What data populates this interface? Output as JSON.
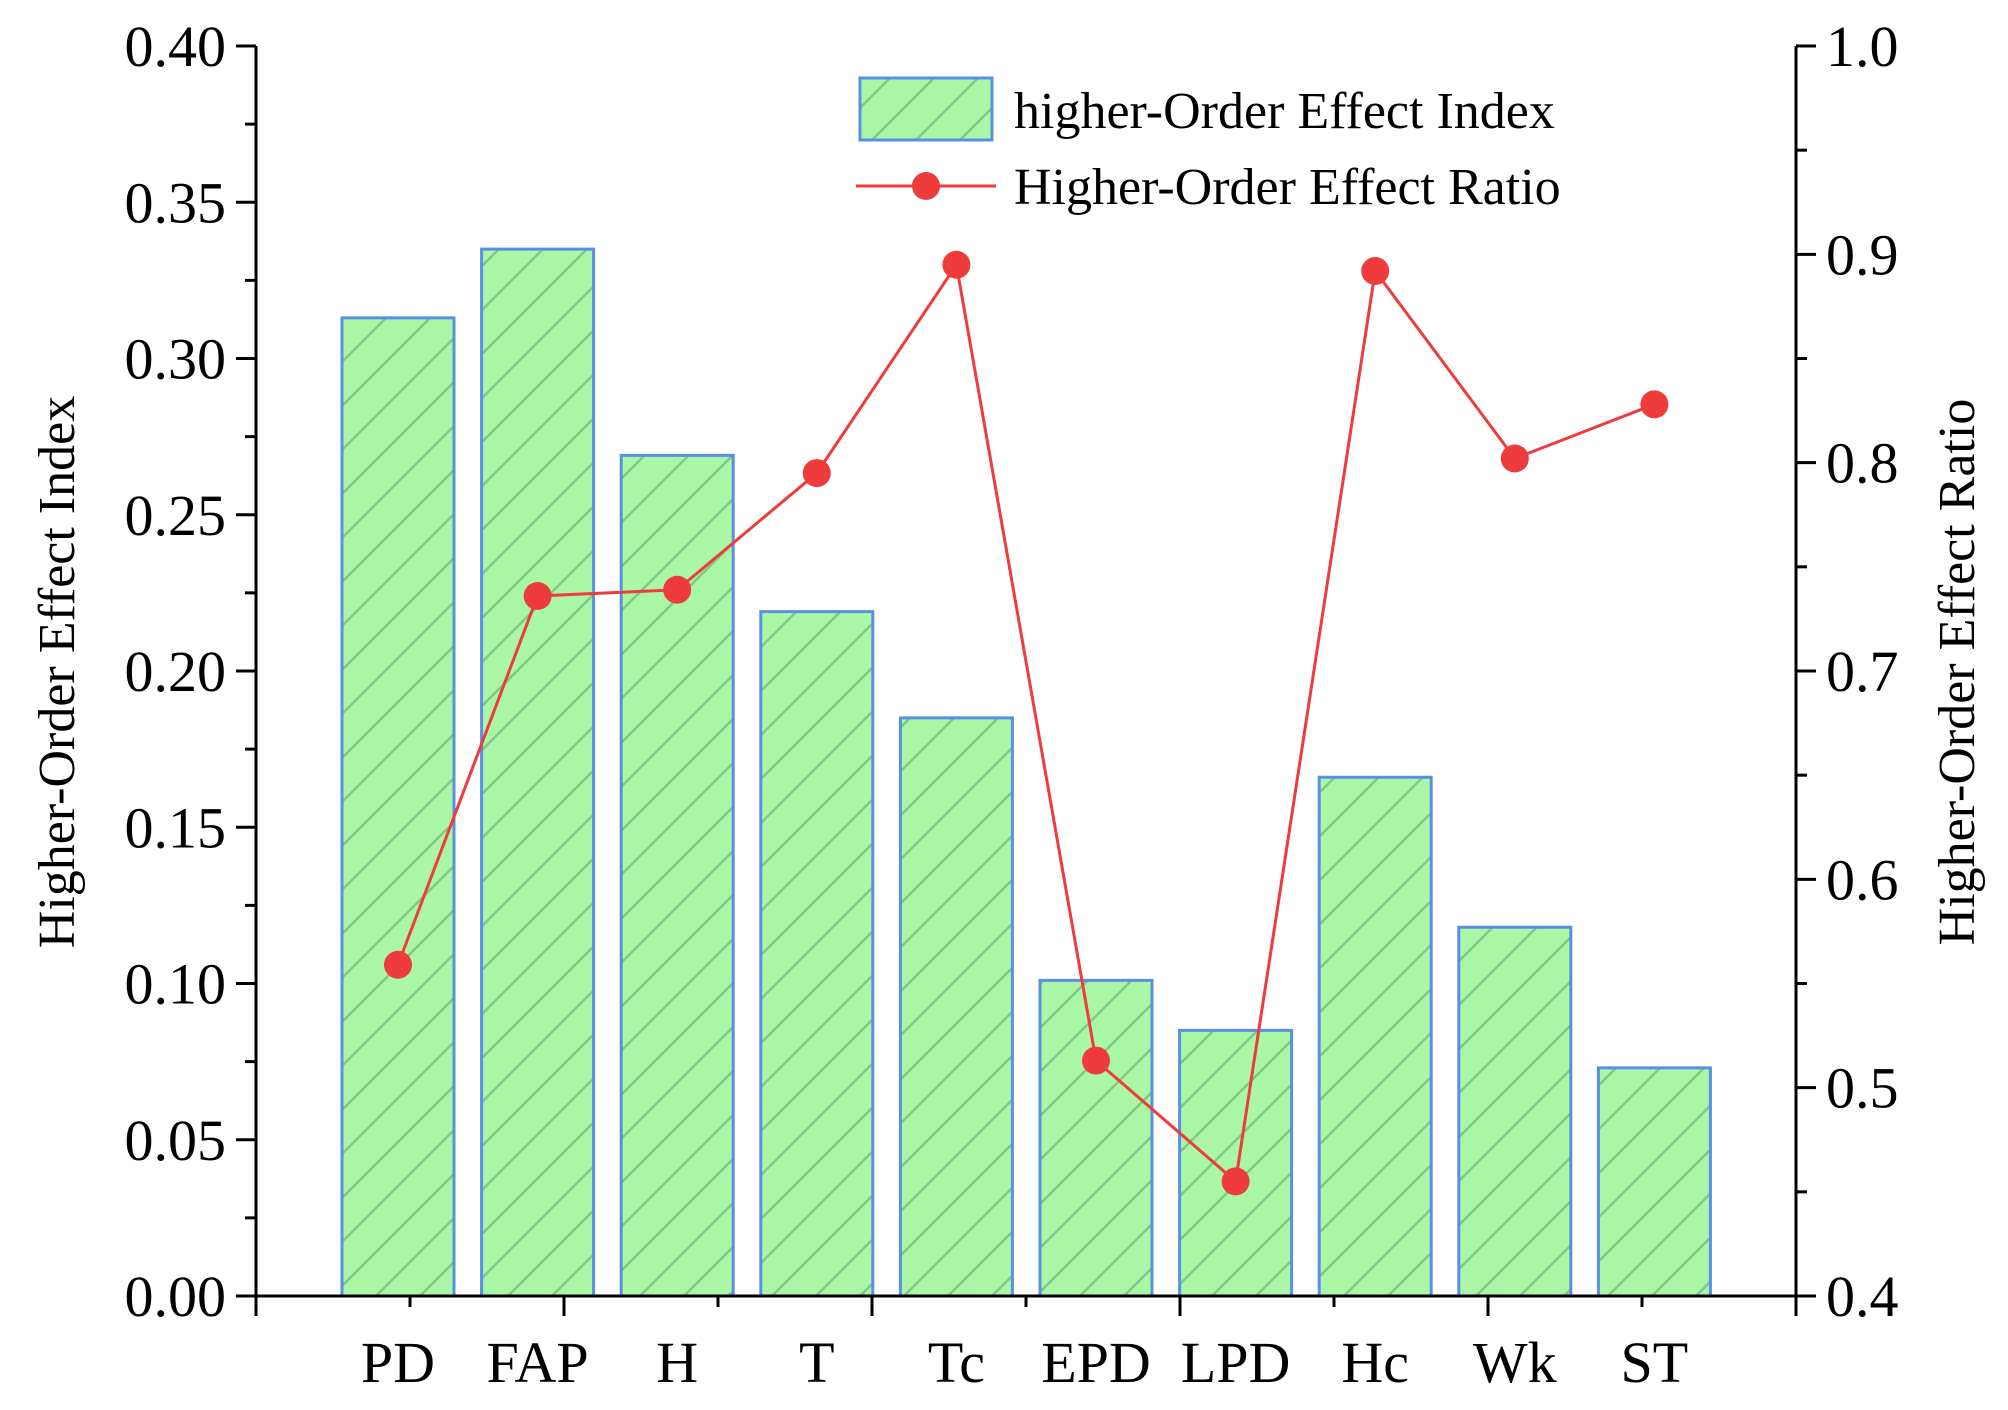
{
  "chart_data": {
    "type": "bar",
    "categories": [
      "PD",
      "FAP",
      "H",
      "T",
      "Tc",
      "EPD",
      "LPD",
      "Hc",
      "Wk",
      "ST"
    ],
    "series": [
      {
        "name": "higher-Order Effect Index",
        "type": "bar",
        "axis": "left",
        "values": [
          0.313,
          0.335,
          0.269,
          0.219,
          0.185,
          0.101,
          0.085,
          0.166,
          0.118,
          0.073
        ]
      },
      {
        "name": "Higher-Order Effect Ratio",
        "type": "line",
        "axis": "right",
        "values": [
          0.559,
          0.736,
          0.739,
          0.795,
          0.895,
          0.513,
          0.455,
          0.892,
          0.802,
          0.828
        ]
      }
    ],
    "ylabel": "Higher-Order Effect Index",
    "y2label": "Higher-Order Effect Ratio",
    "ylim": [
      0.0,
      0.4
    ],
    "y2lim": [
      0.4,
      1.0
    ],
    "yticks": [
      "0.00",
      "0.05",
      "0.10",
      "0.15",
      "0.20",
      "0.25",
      "0.30",
      "0.35",
      "0.40"
    ],
    "y2ticks": [
      "0.4",
      "0.5",
      "0.6",
      "0.7",
      "0.8",
      "0.9",
      "1.0"
    ],
    "legend_position": "top-right",
    "grid": false
  },
  "colors": {
    "bar_fill": "#aaf8a6",
    "bar_stroke": "#5a8fe6",
    "hatch": "#7fc88a",
    "line": "#ee3b3b",
    "marker": "#ee3b3b",
    "axis": "#000000"
  }
}
